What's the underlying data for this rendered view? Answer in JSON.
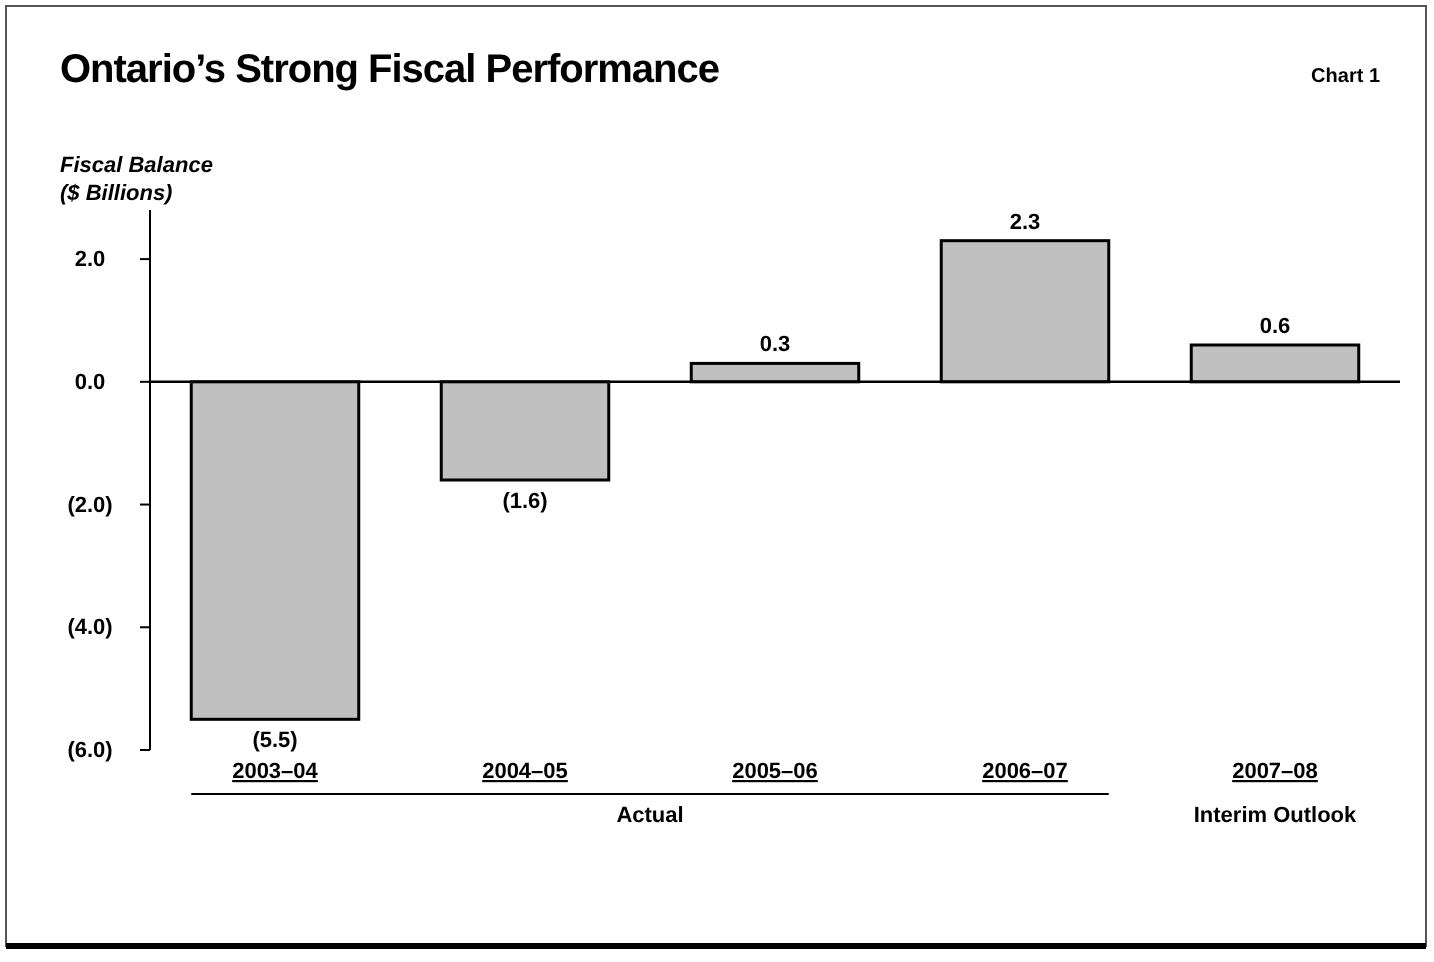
{
  "chart_data": {
    "type": "bar",
    "title": "Ontario’s Strong Fiscal Performance",
    "ylabel": "Fiscal Balance\n($ Billions)",
    "categories": [
      "2003–04",
      "2004–05",
      "2005–06",
      "2006–07",
      "2007–08"
    ],
    "values": [
      -5.5,
      -1.6,
      0.3,
      2.3,
      0.6
    ],
    "value_labels": [
      "(5.5)",
      "(1.6)",
      "0.3",
      "2.3",
      "0.6"
    ],
    "color": "#c0c0c0",
    "ylim": [
      -6,
      2.8
    ],
    "yticks": [
      {
        "value": 2,
        "label": "2.0"
      },
      {
        "value": 0,
        "label": "0.0"
      },
      {
        "value": -2,
        "label": "(2.0)"
      },
      {
        "value": -4,
        "label": "(4.0)"
      },
      {
        "value": -6,
        "label": "(6.0)"
      }
    ],
    "annotations": [
      "Chart 1",
      "Actual",
      "Interim Outlook"
    ]
  }
}
